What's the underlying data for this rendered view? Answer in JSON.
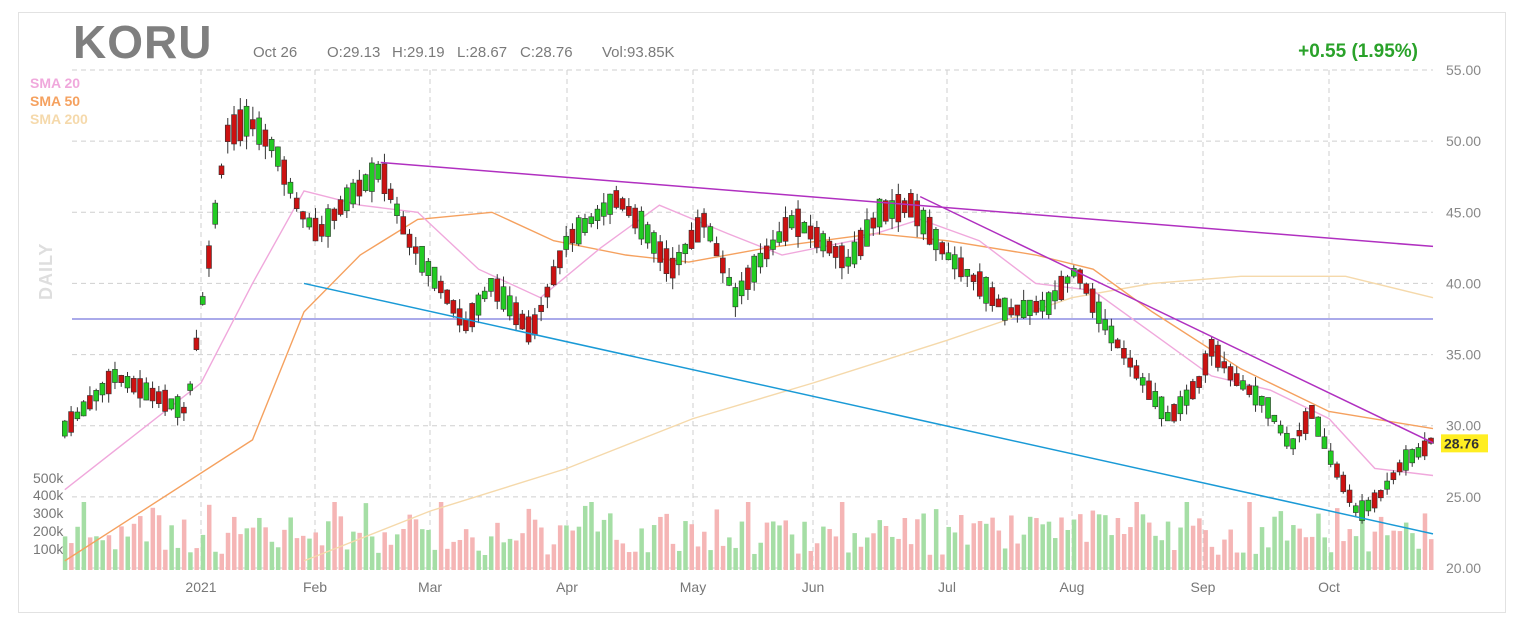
{
  "header": {
    "ticker": "KORU",
    "date": "Oct 26",
    "open": "O:29.13",
    "high": "H:29.19",
    "low": "L:28.67",
    "close": "C:28.76",
    "volume": "Vol:93.85K",
    "change": "+0.55 (1.95%)",
    "period": "DAILY"
  },
  "legend": [
    {
      "label": "SMA 20",
      "color": "#f0a8dc"
    },
    {
      "label": "SMA 50",
      "color": "#f5a15f"
    },
    {
      "label": "SMA 200",
      "color": "#f5d9ab"
    }
  ],
  "colors": {
    "up": "#22cc22",
    "down": "#cc1111",
    "upVol": "#a5dea5",
    "downVol": "#f5b5b5",
    "grid": "#cfcfcf",
    "resistance": "#b030c0",
    "support": "#1a9ad6",
    "level": "#7777dd",
    "lastPriceBg": "#ffee22",
    "changeColor": "#2aa22a"
  },
  "chart_data": {
    "type": "candlestick",
    "ylim": [
      20,
      55
    ],
    "y_ticks": [
      "55.00",
      "50.00",
      "45.00",
      "40.00",
      "35.00",
      "30.00",
      "25.00",
      "20.00"
    ],
    "volume_ticks": [
      "500k",
      "400k",
      "300k",
      "200k",
      "100k"
    ],
    "x_labels": [
      "2021",
      "Feb",
      "Mar",
      "Apr",
      "May",
      "Jun",
      "Jul",
      "Aug",
      "Sep",
      "Oct"
    ],
    "last_price": "28.76",
    "horizontal_level": 37.5,
    "trendlines": [
      {
        "name": "resistance-long",
        "from": [
          "Feb 17",
          48.5
        ],
        "to": [
          "Oct 26",
          42.6
        ]
      },
      {
        "name": "resistance-short",
        "from": [
          "Jun 25",
          46.1
        ],
        "to": [
          "Oct 26",
          28.8
        ]
      },
      {
        "name": "support",
        "from": [
          "Jan 29",
          40.0
        ],
        "to": [
          "Oct 26",
          22.4
        ]
      }
    ],
    "price_anchors": [
      [
        "Dec 14",
        29.8
      ],
      [
        "Dec 21",
        33.5
      ],
      [
        "Dec 31",
        31.0
      ],
      [
        "Jan 8",
        50.5
      ],
      [
        "Jan 14",
        51.5
      ],
      [
        "Jan 21",
        49.5
      ],
      [
        "Jan 28",
        45.0
      ],
      [
        "Feb 2",
        43.5
      ],
      [
        "Feb 9",
        46.0
      ],
      [
        "Feb 17",
        48.0
      ],
      [
        "Feb 24",
        43.0
      ],
      [
        "Mar 4",
        39.5
      ],
      [
        "Mar 9",
        37.0
      ],
      [
        "Mar 15",
        40.0
      ],
      [
        "Mar 24",
        36.5
      ],
      [
        "Apr 1",
        43.0
      ],
      [
        "Apr 13",
        46.0
      ],
      [
        "Apr 19",
        44.0
      ],
      [
        "Apr 26",
        41.0
      ],
      [
        "May 4",
        44.5
      ],
      [
        "May 12",
        39.0
      ],
      [
        "May 18",
        41.5
      ],
      [
        "May 27",
        44.5
      ],
      [
        "Jun 9",
        41.5
      ],
      [
        "Jun 16",
        45.0
      ],
      [
        "Jun 23",
        45.5
      ],
      [
        "Jul 1",
        42.0
      ],
      [
        "Jul 9",
        40.0
      ],
      [
        "Jul 16",
        38.0
      ],
      [
        "Jul 26",
        38.5
      ],
      [
        "Aug 2",
        41.0
      ],
      [
        "Aug 9",
        37.0
      ],
      [
        "Aug 18",
        33.0
      ],
      [
        "Aug 24",
        30.5
      ],
      [
        "Aug 31",
        33.0
      ],
      [
        "Sep 3",
        35.5
      ],
      [
        "Sep 8",
        33.5
      ],
      [
        "Sep 16",
        31.5
      ],
      [
        "Sep 22",
        28.5
      ],
      [
        "Sep 27",
        31.0
      ],
      [
        "Oct 1",
        28.0
      ],
      [
        "Oct 8",
        23.8
      ],
      [
        "Oct 13",
        25.0
      ],
      [
        "Oct 19",
        27.5
      ],
      [
        "Oct 26",
        28.76
      ]
    ],
    "sma20_anchors": [
      [
        "Dec 14",
        25.5
      ],
      [
        "Jan 1",
        33.0
      ],
      [
        "Jan 15",
        40.0
      ],
      [
        "Jan 29",
        46.5
      ],
      [
        "Feb 12",
        45.5
      ],
      [
        "Feb 26",
        45.0
      ],
      [
        "Mar 12",
        41.0
      ],
      [
        "Mar 26",
        39.0
      ],
      [
        "Apr 9",
        42.5
      ],
      [
        "Apr 23",
        45.5
      ],
      [
        "May 10",
        43.5
      ],
      [
        "May 24",
        42.0
      ],
      [
        "Jun 10",
        43.0
      ],
      [
        "Jun 25",
        44.5
      ],
      [
        "Jul 9",
        43.0
      ],
      [
        "Jul 23",
        40.0
      ],
      [
        "Aug 6",
        39.5
      ],
      [
        "Aug 20",
        36.5
      ],
      [
        "Sep 3",
        33.5
      ],
      [
        "Sep 17",
        32.5
      ],
      [
        "Oct 1",
        30.5
      ],
      [
        "Oct 12",
        27.0
      ],
      [
        "Oct 26",
        26.5
      ]
    ],
    "sma50_anchors": [
      [
        "Dec 14",
        20.5
      ],
      [
        "Jan 15",
        29.0
      ],
      [
        "Jan 29",
        38.0
      ],
      [
        "Feb 12",
        42.0
      ],
      [
        "Feb 26",
        44.5
      ],
      [
        "Mar 15",
        45.0
      ],
      [
        "Mar 29",
        43.0
      ],
      [
        "Apr 15",
        42.0
      ],
      [
        "Apr 30",
        41.5
      ],
      [
        "May 20",
        42.5
      ],
      [
        "Jun 15",
        43.5
      ],
      [
        "Jul 1",
        43.0
      ],
      [
        "Jul 23",
        42.0
      ],
      [
        "Aug 6",
        41.0
      ],
      [
        "Aug 20",
        38.0
      ],
      [
        "Sep 10",
        34.0
      ],
      [
        "Oct 1",
        31.0
      ],
      [
        "Oct 26",
        29.8
      ]
    ],
    "sma200_anchors": [
      [
        "Jan 29",
        20.5
      ],
      [
        "Mar 1",
        24.0
      ],
      [
        "Apr 1",
        27.0
      ],
      [
        "May 1",
        30.5
      ],
      [
        "Jun 1",
        33.0
      ],
      [
        "Jul 1",
        36.0
      ],
      [
        "Aug 1",
        39.0
      ],
      [
        "Aug 20",
        40.0
      ],
      [
        "Sep 10",
        40.5
      ],
      [
        "Oct 5",
        40.5
      ],
      [
        "Oct 26",
        39.0
      ]
    ]
  }
}
